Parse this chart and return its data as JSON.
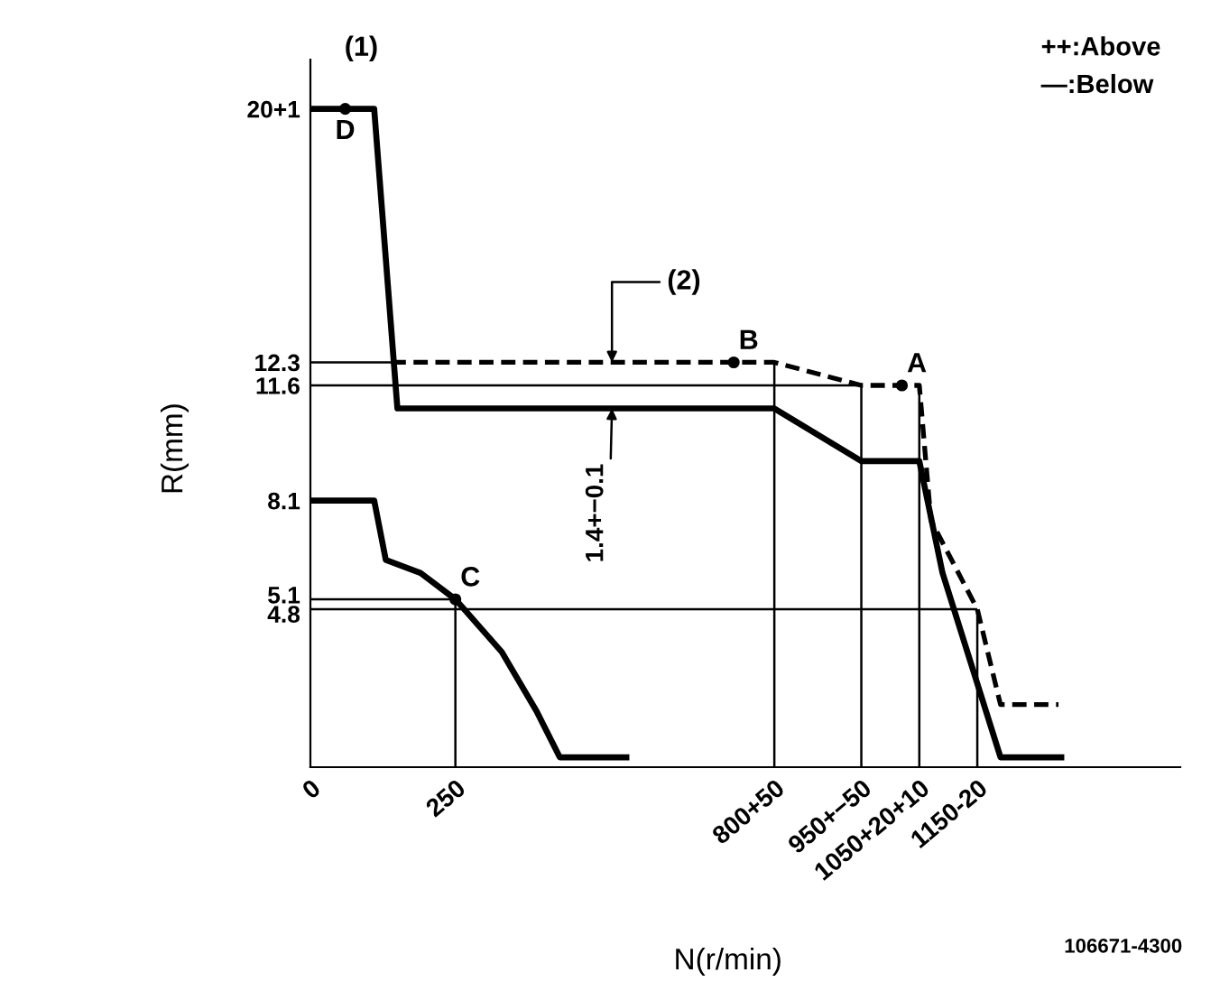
{
  "chart_data": {
    "type": "line",
    "xlabel": "N(r/min)",
    "ylabel": "R(mm)",
    "xlim": [
      0,
      1500
    ],
    "ylim": [
      0,
      21.5
    ],
    "xticks": [
      0,
      250,
      {
        "value": 800,
        "label": "800+50"
      },
      {
        "value": 950,
        "label": "950+−50"
      },
      {
        "value": 1050,
        "label": "1050+20+10"
      },
      {
        "value": 1150,
        "label": "1150-20"
      }
    ],
    "yticks": [
      4.8,
      5.1,
      8.1,
      11.6,
      12.3,
      {
        "value": 20,
        "label": "20+1"
      }
    ],
    "series": [
      {
        "color": "#000000",
        "x": [
          0,
          140
        ],
        "values": [
          12.3,
          12.3
        ]
      },
      {
        "color": "#000000",
        "x": [
          0,
          950
        ],
        "values": [
          11.6,
          11.6
        ]
      },
      {
        "color": "#000000",
        "x": [
          0,
          250
        ],
        "values": [
          5.1,
          5.1
        ]
      },
      {
        "color": "#000000",
        "x": [
          0,
          1150
        ],
        "values": [
          4.8,
          4.8
        ]
      },
      {
        "color": "#000000",
        "x": [
          250,
          250
        ],
        "values": [
          0,
          5.1
        ]
      },
      {
        "color": "#000000",
        "x": [
          800,
          800
        ],
        "values": [
          0,
          12.3
        ]
      },
      {
        "color": "#000000",
        "x": [
          950,
          950
        ],
        "values": [
          0,
          11.6
        ]
      },
      {
        "color": "#000000",
        "x": [
          1050,
          1050
        ],
        "values": [
          0,
          11.6
        ]
      },
      {
        "color": "#000000",
        "x": [
          1150,
          1150
        ],
        "values": [
          0,
          4.8
        ]
      },
      {
        "color": "#000000",
        "x": [
          0,
          110,
          130,
          190,
          250,
          330,
          390,
          430,
          550
        ],
        "values": [
          8.1,
          8.1,
          6.3,
          5.9,
          5.1,
          3.5,
          1.7,
          0.3,
          0.3
        ]
      },
      {
        "color": "#000000",
        "line_style": "dashed",
        "x": [
          140,
          800,
          950,
          1050,
          1070,
          1150,
          1190,
          1290
        ],
        "values": [
          12.3,
          12.3,
          11.6,
          11.6,
          7.5,
          4.8,
          1.9,
          1.9
        ]
      },
      {
        "color": "#000000",
        "x": [
          0,
          110,
          150,
          800,
          950,
          1050,
          1090,
          1190,
          1300
        ],
        "values": [
          20,
          20,
          10.9,
          10.9,
          9.3,
          9.3,
          5.9,
          0.3,
          0.3
        ]
      },
      {
        "type": "scatter",
        "color": "#000000",
        "marker": "circle",
        "x": [
          60,
          730,
          1020,
          250
        ],
        "values": [
          20,
          12.3,
          11.6,
          5.1
        ]
      }
    ],
    "annotations": [
      "(1)",
      "++:Above",
      "—:Below",
      "106671-4300",
      {
        "text": "(2)",
        "x": 520,
        "y": 12.3
      },
      {
        "text": "1.4+−0.1",
        "x": 520,
        "y": 10.9
      },
      {
        "text": "D",
        "x": 60,
        "y": 20
      },
      {
        "text": "B",
        "x": 730,
        "y": 12.3
      },
      {
        "text": "A",
        "x": 1020,
        "y": 11.6
      },
      {
        "text": "C",
        "x": 250,
        "y": 5.1
      }
    ]
  }
}
